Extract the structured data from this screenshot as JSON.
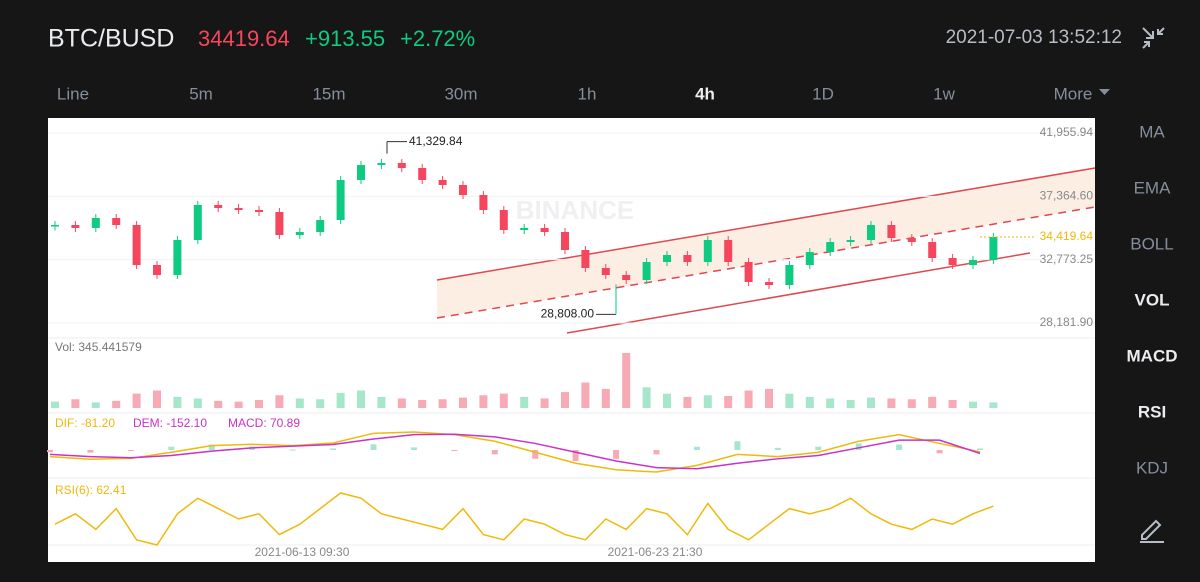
{
  "header": {
    "symbol": "BTC/BUSD",
    "price": "34419.64",
    "change": "+913.55",
    "change_pct": "+2.72%",
    "datetime": "2021-07-03 13:52:12"
  },
  "tabs": [
    "Line",
    "5m",
    "15m",
    "30m",
    "1h",
    "4h",
    "1D",
    "1w",
    "More"
  ],
  "active_tab": 5,
  "side_menu": [
    "MA",
    "EMA",
    "BOLL",
    "VOL",
    "MACD",
    "RSI",
    "KDJ"
  ],
  "active_side": [
    3,
    4,
    5
  ],
  "watermark": "BINANCE",
  "chart": {
    "price_ticks": [
      {
        "value": 41955.94,
        "label": "41,955.94"
      },
      {
        "value": 37364.6,
        "label": "37,364.60"
      },
      {
        "value": 32773.25,
        "label": "32,773.25"
      },
      {
        "value": 28181.9,
        "label": "28,181.90"
      }
    ],
    "high": {
      "value": 41329.84,
      "label": "41,329.84"
    },
    "low": {
      "value": 28808.0,
      "label": "28,808.00"
    },
    "last": {
      "value": 34419.64,
      "label": "34,419.64"
    },
    "closes": [
      35286,
      35069,
      35793,
      35286,
      32386,
      31661,
      34198,
      36736,
      36518,
      36373,
      36228,
      34561,
      34778,
      35648,
      38548,
      39636,
      39781,
      39418,
      38548,
      38186,
      37461,
      36373,
      34923,
      35069,
      34778,
      33473,
      32168,
      31661,
      31298,
      32603,
      33111,
      32603,
      34198,
      32603,
      31153,
      30936,
      32386,
      33328,
      34053,
      34198,
      35286,
      34343,
      34053,
      32893,
      32386,
      32748,
      34419.64
    ],
    "time_labels": [
      "2021-06-13 09:30",
      "2021-06-23 21:30"
    ]
  },
  "volume": {
    "label": "Vol: 345.441579",
    "values": [
      40,
      55,
      35,
      45,
      90,
      110,
      70,
      60,
      45,
      40,
      50,
      80,
      60,
      55,
      95,
      110,
      70,
      60,
      50,
      55,
      65,
      80,
      90,
      70,
      60,
      100,
      160,
      120,
      345.441579,
      130,
      90,
      70,
      80,
      75,
      110,
      120,
      90,
      70,
      60,
      50,
      65,
      60,
      55,
      70,
      50,
      40,
      35
    ]
  },
  "macd": {
    "dif_label": "DIF: -81.20",
    "dem_label": "DEM: -152.10",
    "macd_label": "MACD: 70.89",
    "dif": [
      -300,
      -420,
      -380,
      -100,
      200,
      260,
      200,
      320,
      760,
      820,
      700,
      400,
      -100,
      -600,
      -900,
      -1000,
      -700,
      -200,
      -300,
      -100,
      400,
      700,
      300,
      -81.2
    ],
    "dem": [
      -200,
      -300,
      -350,
      -250,
      -50,
      100,
      180,
      250,
      500,
      700,
      720,
      600,
      300,
      -100,
      -500,
      -800,
      -850,
      -600,
      -400,
      -250,
      100,
      450,
      450,
      -152.1
    ]
  },
  "rsi": {
    "label": "RSI(6): 62.41",
    "values": [
      45,
      55,
      40,
      60,
      30,
      25,
      55,
      70,
      60,
      50,
      55,
      35,
      45,
      60,
      75,
      70,
      55,
      50,
      45,
      40,
      60,
      35,
      30,
      50,
      45,
      35,
      30,
      50,
      40,
      60,
      55,
      35,
      65,
      40,
      30,
      45,
      60,
      55,
      60,
      70,
      55,
      45,
      40,
      50,
      45,
      55,
      62.41
    ]
  }
}
